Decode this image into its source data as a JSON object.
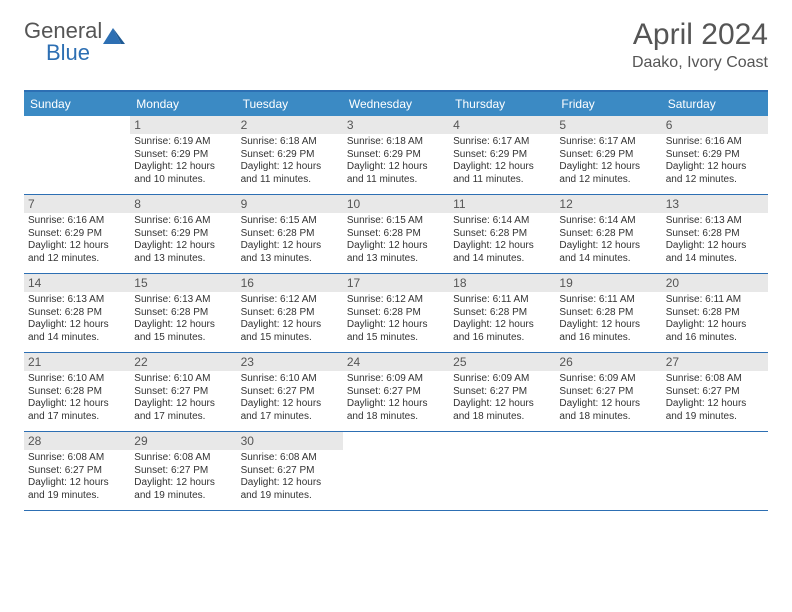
{
  "logo": {
    "text1": "General",
    "text2": "Blue"
  },
  "title": "April 2024",
  "location": "Daako, Ivory Coast",
  "colors": {
    "header_bg": "#3b8ac4",
    "header_border": "#2d6fb3",
    "daynum_bg": "#e8e8e8",
    "text": "#333333",
    "logo_blue": "#2d6fb3"
  },
  "day_names": [
    "Sunday",
    "Monday",
    "Tuesday",
    "Wednesday",
    "Thursday",
    "Friday",
    "Saturday"
  ],
  "weeks": [
    [
      {
        "n": "",
        "empty": true
      },
      {
        "n": "1",
        "sunrise": "Sunrise: 6:19 AM",
        "sunset": "Sunset: 6:29 PM",
        "daylight": "Daylight: 12 hours and 10 minutes."
      },
      {
        "n": "2",
        "sunrise": "Sunrise: 6:18 AM",
        "sunset": "Sunset: 6:29 PM",
        "daylight": "Daylight: 12 hours and 11 minutes."
      },
      {
        "n": "3",
        "sunrise": "Sunrise: 6:18 AM",
        "sunset": "Sunset: 6:29 PM",
        "daylight": "Daylight: 12 hours and 11 minutes."
      },
      {
        "n": "4",
        "sunrise": "Sunrise: 6:17 AM",
        "sunset": "Sunset: 6:29 PM",
        "daylight": "Daylight: 12 hours and 11 minutes."
      },
      {
        "n": "5",
        "sunrise": "Sunrise: 6:17 AM",
        "sunset": "Sunset: 6:29 PM",
        "daylight": "Daylight: 12 hours and 12 minutes."
      },
      {
        "n": "6",
        "sunrise": "Sunrise: 6:16 AM",
        "sunset": "Sunset: 6:29 PM",
        "daylight": "Daylight: 12 hours and 12 minutes."
      }
    ],
    [
      {
        "n": "7",
        "sunrise": "Sunrise: 6:16 AM",
        "sunset": "Sunset: 6:29 PM",
        "daylight": "Daylight: 12 hours and 12 minutes."
      },
      {
        "n": "8",
        "sunrise": "Sunrise: 6:16 AM",
        "sunset": "Sunset: 6:29 PM",
        "daylight": "Daylight: 12 hours and 13 minutes."
      },
      {
        "n": "9",
        "sunrise": "Sunrise: 6:15 AM",
        "sunset": "Sunset: 6:28 PM",
        "daylight": "Daylight: 12 hours and 13 minutes."
      },
      {
        "n": "10",
        "sunrise": "Sunrise: 6:15 AM",
        "sunset": "Sunset: 6:28 PM",
        "daylight": "Daylight: 12 hours and 13 minutes."
      },
      {
        "n": "11",
        "sunrise": "Sunrise: 6:14 AM",
        "sunset": "Sunset: 6:28 PM",
        "daylight": "Daylight: 12 hours and 14 minutes."
      },
      {
        "n": "12",
        "sunrise": "Sunrise: 6:14 AM",
        "sunset": "Sunset: 6:28 PM",
        "daylight": "Daylight: 12 hours and 14 minutes."
      },
      {
        "n": "13",
        "sunrise": "Sunrise: 6:13 AM",
        "sunset": "Sunset: 6:28 PM",
        "daylight": "Daylight: 12 hours and 14 minutes."
      }
    ],
    [
      {
        "n": "14",
        "sunrise": "Sunrise: 6:13 AM",
        "sunset": "Sunset: 6:28 PM",
        "daylight": "Daylight: 12 hours and 14 minutes."
      },
      {
        "n": "15",
        "sunrise": "Sunrise: 6:13 AM",
        "sunset": "Sunset: 6:28 PM",
        "daylight": "Daylight: 12 hours and 15 minutes."
      },
      {
        "n": "16",
        "sunrise": "Sunrise: 6:12 AM",
        "sunset": "Sunset: 6:28 PM",
        "daylight": "Daylight: 12 hours and 15 minutes."
      },
      {
        "n": "17",
        "sunrise": "Sunrise: 6:12 AM",
        "sunset": "Sunset: 6:28 PM",
        "daylight": "Daylight: 12 hours and 15 minutes."
      },
      {
        "n": "18",
        "sunrise": "Sunrise: 6:11 AM",
        "sunset": "Sunset: 6:28 PM",
        "daylight": "Daylight: 12 hours and 16 minutes."
      },
      {
        "n": "19",
        "sunrise": "Sunrise: 6:11 AM",
        "sunset": "Sunset: 6:28 PM",
        "daylight": "Daylight: 12 hours and 16 minutes."
      },
      {
        "n": "20",
        "sunrise": "Sunrise: 6:11 AM",
        "sunset": "Sunset: 6:28 PM",
        "daylight": "Daylight: 12 hours and 16 minutes."
      }
    ],
    [
      {
        "n": "21",
        "sunrise": "Sunrise: 6:10 AM",
        "sunset": "Sunset: 6:28 PM",
        "daylight": "Daylight: 12 hours and 17 minutes."
      },
      {
        "n": "22",
        "sunrise": "Sunrise: 6:10 AM",
        "sunset": "Sunset: 6:27 PM",
        "daylight": "Daylight: 12 hours and 17 minutes."
      },
      {
        "n": "23",
        "sunrise": "Sunrise: 6:10 AM",
        "sunset": "Sunset: 6:27 PM",
        "daylight": "Daylight: 12 hours and 17 minutes."
      },
      {
        "n": "24",
        "sunrise": "Sunrise: 6:09 AM",
        "sunset": "Sunset: 6:27 PM",
        "daylight": "Daylight: 12 hours and 18 minutes."
      },
      {
        "n": "25",
        "sunrise": "Sunrise: 6:09 AM",
        "sunset": "Sunset: 6:27 PM",
        "daylight": "Daylight: 12 hours and 18 minutes."
      },
      {
        "n": "26",
        "sunrise": "Sunrise: 6:09 AM",
        "sunset": "Sunset: 6:27 PM",
        "daylight": "Daylight: 12 hours and 18 minutes."
      },
      {
        "n": "27",
        "sunrise": "Sunrise: 6:08 AM",
        "sunset": "Sunset: 6:27 PM",
        "daylight": "Daylight: 12 hours and 19 minutes."
      }
    ],
    [
      {
        "n": "28",
        "sunrise": "Sunrise: 6:08 AM",
        "sunset": "Sunset: 6:27 PM",
        "daylight": "Daylight: 12 hours and 19 minutes."
      },
      {
        "n": "29",
        "sunrise": "Sunrise: 6:08 AM",
        "sunset": "Sunset: 6:27 PM",
        "daylight": "Daylight: 12 hours and 19 minutes."
      },
      {
        "n": "30",
        "sunrise": "Sunrise: 6:08 AM",
        "sunset": "Sunset: 6:27 PM",
        "daylight": "Daylight: 12 hours and 19 minutes."
      },
      {
        "n": "",
        "empty": true
      },
      {
        "n": "",
        "empty": true
      },
      {
        "n": "",
        "empty": true
      },
      {
        "n": "",
        "empty": true
      }
    ]
  ]
}
